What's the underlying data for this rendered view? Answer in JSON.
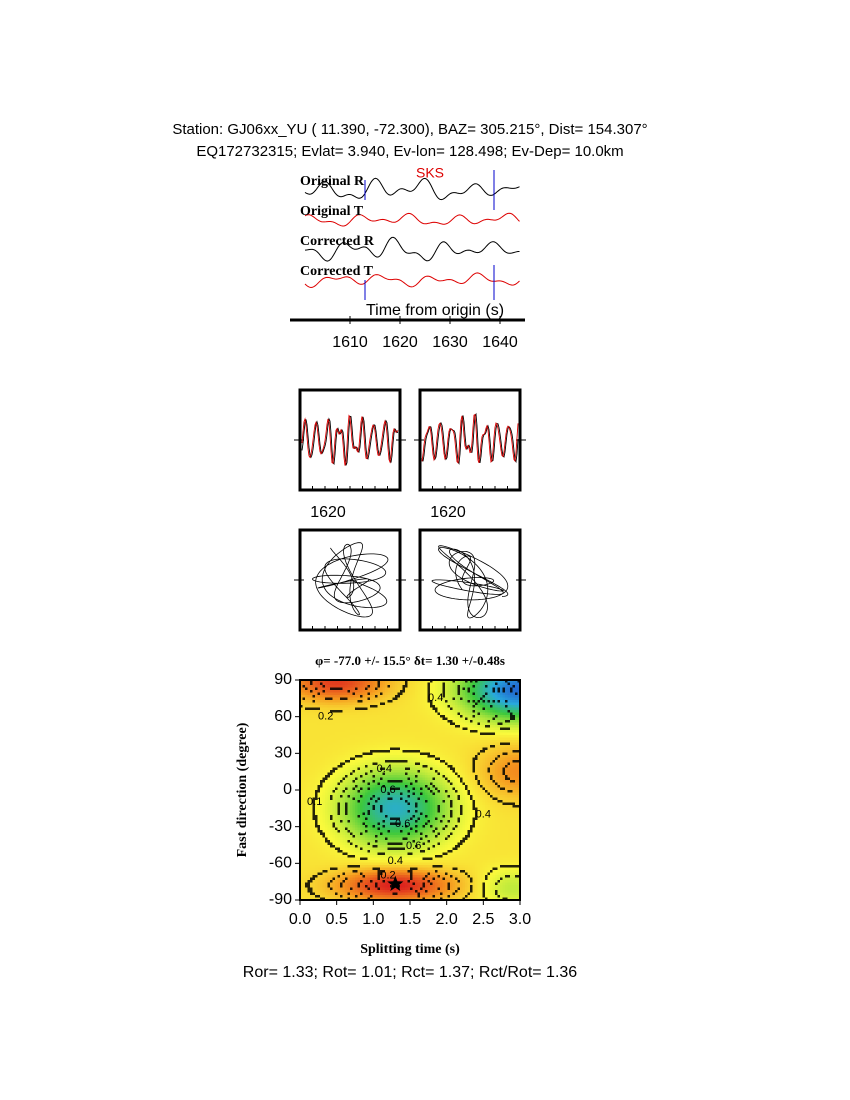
{
  "header": {
    "line1": "Station: GJ06xx_YU (  11.390,  -72.300), BAZ=  305.215°, Dist=  154.307°",
    "line2": "EQ172732315; Evlat=   3.940, Ev-lon= 128.498; Ev-Dep= 10.0km"
  },
  "chart_data": [
    {
      "type": "waveform",
      "traces": [
        "Original R",
        "Original T",
        "Corrected R",
        "Corrected T"
      ],
      "phase": "SKS",
      "phase_time": 1626,
      "window": [
        1613,
        1638.8
      ],
      "xlabel": "Time from origin (s)",
      "xlim": [
        1600,
        1644
      ],
      "xticks": [
        1610,
        1620,
        1630,
        1640
      ]
    },
    {
      "type": "particle",
      "panels": [
        {
          "tick": 1620
        },
        {
          "tick": 1620
        }
      ]
    },
    {
      "type": "contour",
      "title": "φ= -77.0 +/- 15.5° δt= 1.30 +/-0.48s",
      "xlabel": "Splitting time (s)",
      "ylabel": "Fast direction (degree)",
      "xlim": [
        0,
        3
      ],
      "ylim": [
        -90,
        90
      ],
      "xticks": [
        {
          "value": 0,
          "label": "0.0"
        },
        {
          "value": 0.5,
          "label": "0.5"
        },
        {
          "value": 1,
          "label": "1.0"
        },
        {
          "value": 1.5,
          "label": "1.5"
        },
        {
          "value": 2,
          "label": "2.0"
        },
        {
          "value": 2.5,
          "label": "2.5"
        },
        {
          "value": 3,
          "label": "3.0"
        }
      ],
      "yticks": [
        90,
        60,
        30,
        0,
        -30,
        -60,
        -90
      ],
      "best": [
        1.3,
        -77.0
      ],
      "contour_labels": [
        {
          "value": 0.2,
          "x": 0.35,
          "y": 60
        },
        {
          "value": 0.4,
          "x": 1.15,
          "y": 17
        },
        {
          "value": 0.6,
          "x": 1.2,
          "y": 0
        },
        {
          "value": 0.6,
          "x": 1.4,
          "y": -28
        },
        {
          "value": 0.6,
          "x": 1.55,
          "y": -46
        },
        {
          "value": 0.4,
          "x": 1.3,
          "y": -58
        },
        {
          "value": 0.2,
          "x": 1.2,
          "y": -70
        },
        {
          "value": 0.4,
          "x": 1.85,
          "y": 75
        },
        {
          "value": 0.1,
          "x": 0.2,
          "y": -10
        },
        {
          "value": 0.4,
          "x": 2.5,
          "y": -20
        }
      ]
    }
  ],
  "footer": "Ror= 1.33; Rot= 1.01; Rct= 1.37; Rct/Rot= 1.36"
}
